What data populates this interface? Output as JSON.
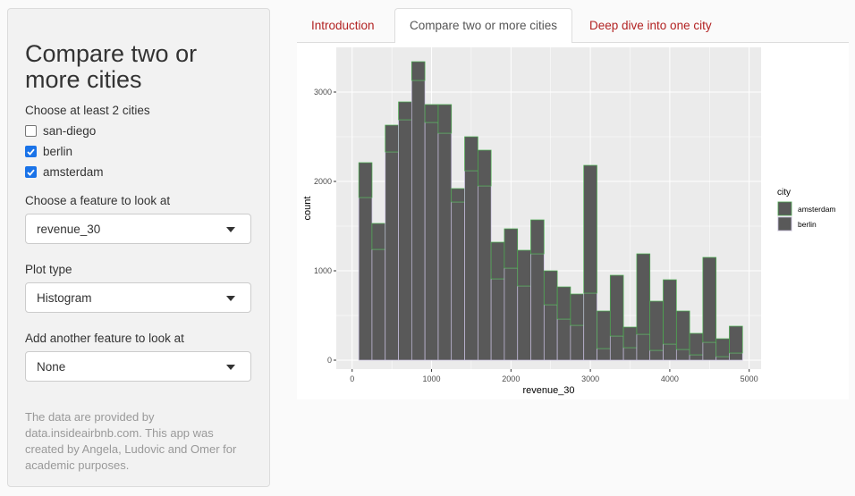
{
  "sidebar": {
    "title": "Compare two or more cities",
    "cities_label": "Choose at least 2 cities",
    "cities": [
      {
        "name": "san-diego",
        "checked": false
      },
      {
        "name": "berlin",
        "checked": true
      },
      {
        "name": "amsterdam",
        "checked": true
      }
    ],
    "feature_label": "Choose a feature to look at",
    "feature_value": "revenue_30",
    "plot_type_label": "Plot type",
    "plot_type_value": "Histogram",
    "another_label": "Add another feature to look at",
    "another_value": "None",
    "info": "The data are provided by data.insideairbnb.com. This app was created by Angela, Ludovic and Omer for academic purposes."
  },
  "tabs": [
    {
      "label": "Introduction",
      "active": false
    },
    {
      "label": "Compare two or more cities",
      "active": true
    },
    {
      "label": "Deep dive into one city",
      "active": false
    }
  ],
  "colors": {
    "bar_fill": "#595959",
    "amsterdam_outline": "#4caf50",
    "berlin_outline": "#c8c0e0",
    "panel_bg": "#ebebeb",
    "accent_link": "#b22222"
  },
  "chart_data": {
    "type": "bar",
    "xlabel": "revenue_30",
    "ylabel": "count",
    "legend_title": "city",
    "legend_position": "right",
    "grid": true,
    "xlim": [
      -200,
      5150
    ],
    "ylim": [
      -100,
      3500
    ],
    "x_ticks": [
      0,
      1000,
      2000,
      3000,
      4000,
      5000
    ],
    "y_ticks": [
      0,
      1000,
      2000,
      3000
    ],
    "bin_width": 166.7,
    "bin_centers": [
      167,
      333,
      500,
      667,
      833,
      1000,
      1167,
      1333,
      1500,
      1667,
      1833,
      2000,
      2167,
      2333,
      2500,
      2667,
      2833,
      3000,
      3167,
      3333,
      3500,
      3667,
      3833,
      4000,
      4167,
      4333,
      4500,
      4667,
      4833
    ],
    "series": [
      {
        "name": "amsterdam",
        "values": [
          390,
          290,
          300,
          200,
          210,
          200,
          320,
          150,
          380,
          400,
          410,
          440,
          400,
          380,
          380,
          360,
          350,
          1430,
          420,
          680,
          230,
          900,
          550,
          720,
          430,
          240,
          950,
          200,
          300
        ]
      },
      {
        "name": "berlin",
        "values": [
          1820,
          1240,
          2330,
          2690,
          3130,
          2660,
          2540,
          1770,
          2120,
          1950,
          910,
          1030,
          830,
          1190,
          620,
          460,
          390,
          750,
          130,
          270,
          140,
          290,
          110,
          180,
          120,
          60,
          200,
          40,
          80
        ]
      }
    ]
  }
}
